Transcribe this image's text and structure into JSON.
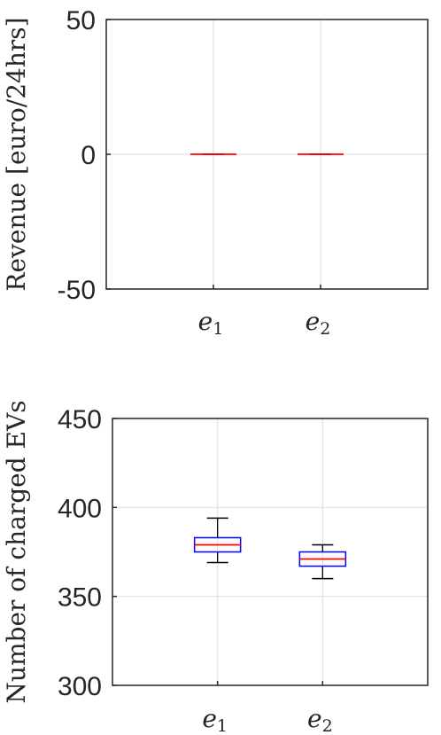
{
  "chart_data": [
    {
      "type": "box",
      "ylabel": "Revenue [euro/24hrs]",
      "ylim": [
        -50,
        50
      ],
      "yticks": [
        -50,
        0,
        50
      ],
      "categories": [
        {
          "base": "e",
          "sub": "1"
        },
        {
          "base": "e",
          "sub": "2"
        }
      ],
      "boxes": [
        {
          "min": 0,
          "q1": 0,
          "median": 0,
          "q3": 0,
          "max": 0
        },
        {
          "min": 0,
          "q1": 0,
          "median": 0,
          "q3": 0,
          "max": 0
        }
      ],
      "grid": true
    },
    {
      "type": "box",
      "ylabel": "Number of charged EVs",
      "ylim": [
        300,
        450
      ],
      "yticks": [
        300,
        350,
        400,
        450
      ],
      "categories": [
        {
          "base": "e",
          "sub": "1"
        },
        {
          "base": "e",
          "sub": "2"
        }
      ],
      "boxes": [
        {
          "min": 369,
          "q1": 375,
          "median": 379,
          "q3": 383,
          "max": 394
        },
        {
          "min": 360,
          "q1": 367,
          "median": 371,
          "q3": 375,
          "max": 379
        }
      ],
      "grid": true
    }
  ],
  "colors": {
    "box": "#0000ff",
    "median": "#ff0000",
    "whisker": "#000000",
    "grid": "#e0e0e0",
    "axis": "#262626"
  }
}
